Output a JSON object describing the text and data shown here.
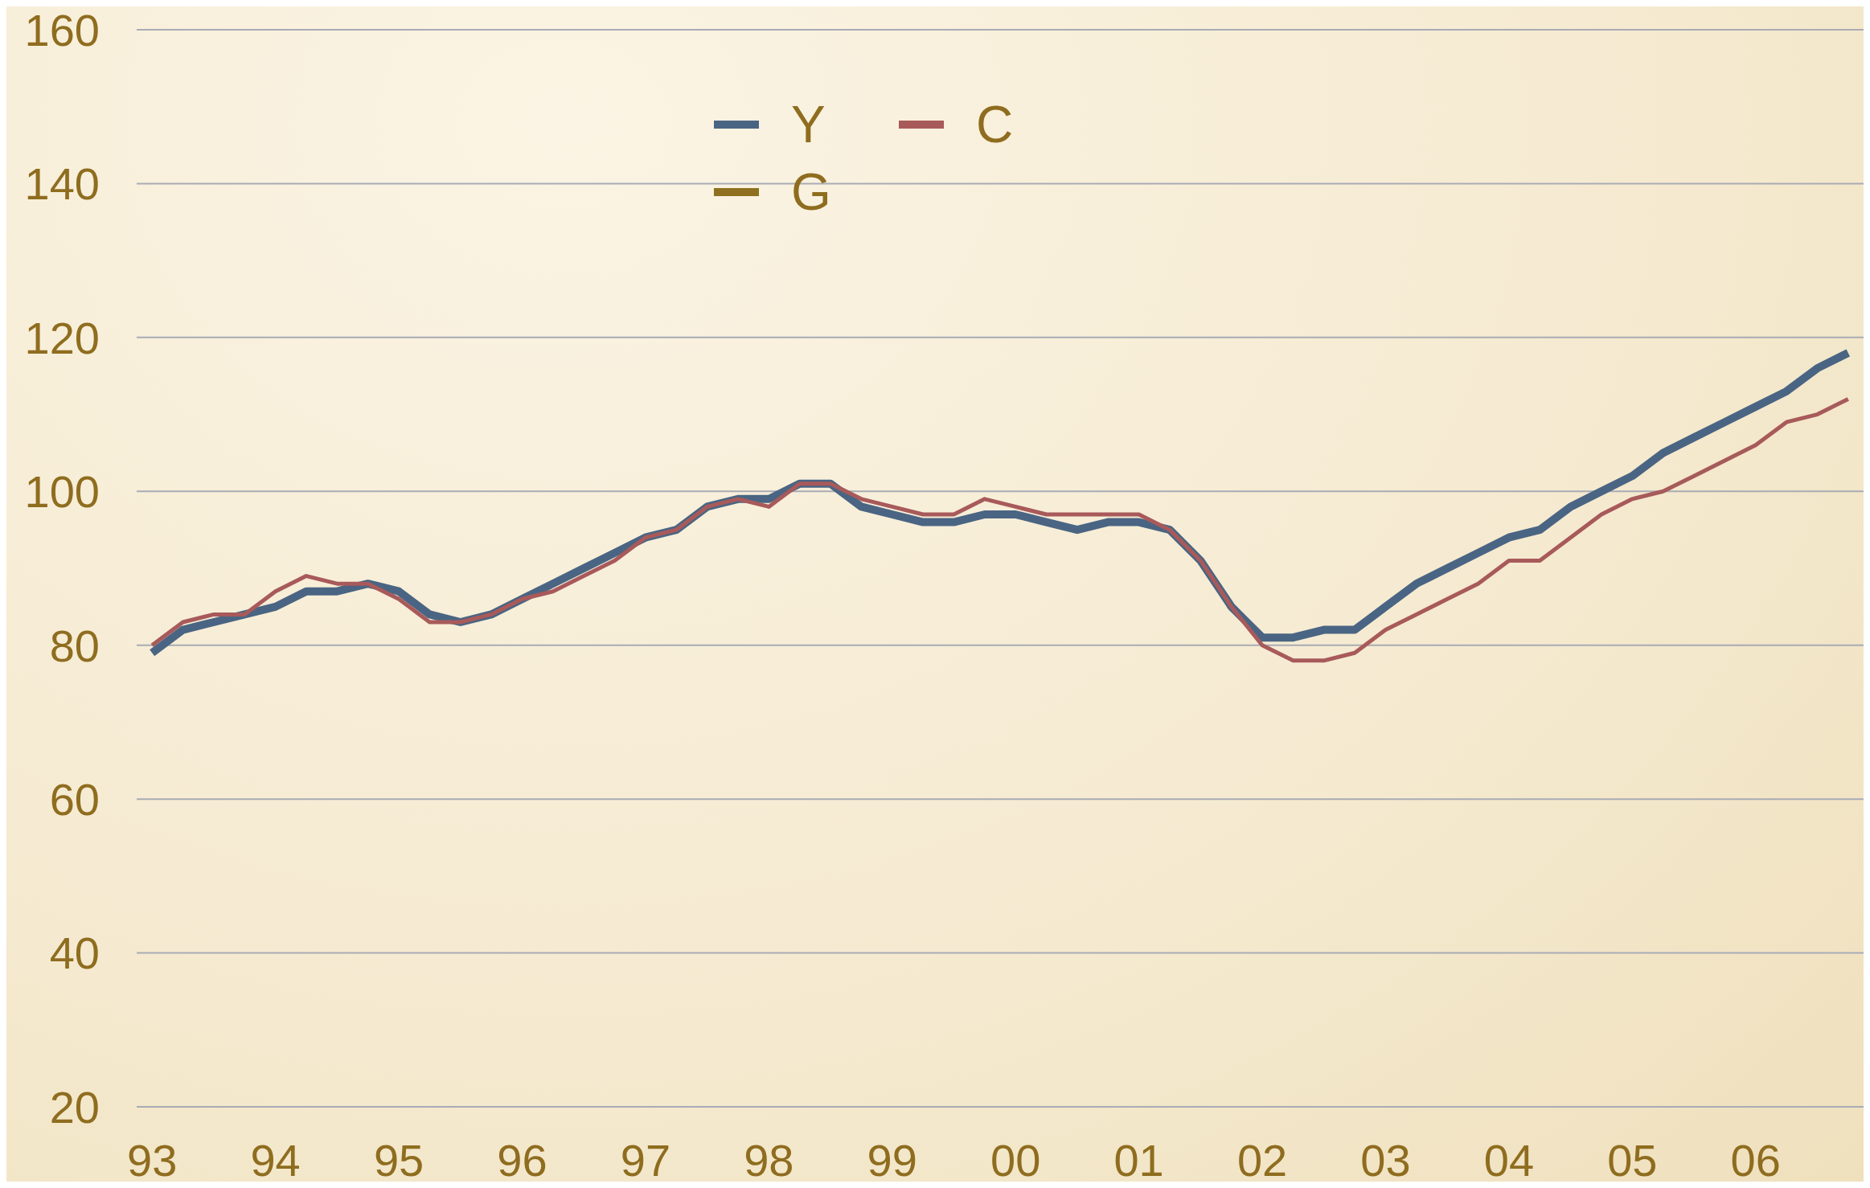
{
  "chart_data": {
    "type": "line",
    "categories": [
      "93",
      null,
      null,
      null,
      "94",
      null,
      null,
      null,
      "95",
      null,
      null,
      null,
      "96",
      null,
      null,
      null,
      "97",
      null,
      null,
      null,
      "98",
      null,
      null,
      null,
      "99",
      null,
      null,
      null,
      "00",
      null,
      null,
      null,
      "01",
      null,
      null,
      null,
      "02",
      null,
      null,
      null,
      "03",
      null,
      null,
      null,
      "04",
      null,
      null,
      null,
      "05",
      null,
      null,
      null,
      "06",
      null,
      null,
      null
    ],
    "series": [
      {
        "name": "Y",
        "color": "#4a6583",
        "values": [
          79,
          82,
          83,
          84,
          85,
          87,
          87,
          88,
          87,
          84,
          83,
          84,
          86,
          88,
          90,
          92,
          94,
          95,
          98,
          99,
          99,
          101,
          101,
          98,
          97,
          96,
          96,
          97,
          97,
          96,
          95,
          96,
          96,
          95,
          91,
          85,
          81,
          81,
          82,
          82,
          85,
          88,
          90,
          92,
          94,
          95,
          98,
          100,
          102,
          105,
          107,
          109,
          111,
          113,
          116,
          118
        ]
      },
      {
        "name": "C",
        "color": "#a85a5a",
        "values": [
          80,
          83,
          84,
          84,
          87,
          89,
          88,
          88,
          86,
          83,
          83,
          84,
          86,
          87,
          89,
          91,
          94,
          95,
          98,
          99,
          98,
          101,
          101,
          99,
          98,
          97,
          97,
          99,
          98,
          97,
          97,
          97,
          97,
          95,
          91,
          85,
          80,
          78,
          78,
          79,
          82,
          84,
          86,
          88,
          91,
          91,
          94,
          97,
          99,
          100,
          102,
          104,
          106,
          109,
          110,
          112
        ]
      },
      {
        "name": "G",
        "color": "#8f7020",
        "values": [
          null,
          null,
          null,
          null,
          null,
          null,
          null,
          null,
          null,
          null,
          null,
          null,
          null,
          null,
          null,
          null,
          null,
          null,
          null,
          null,
          null,
          null,
          null,
          null,
          null,
          null,
          null,
          null,
          null,
          null,
          null,
          null,
          null,
          null,
          null,
          null,
          null,
          null,
          null,
          null,
          null,
          null,
          null,
          null,
          null,
          null,
          null,
          null,
          null,
          null,
          null,
          null,
          null,
          null,
          null,
          null
        ]
      }
    ],
    "ylim": [
      20,
      160
    ],
    "yticks": [
      20,
      40,
      60,
      80,
      100,
      120,
      140,
      160
    ],
    "grid": "y",
    "legend": "top"
  }
}
